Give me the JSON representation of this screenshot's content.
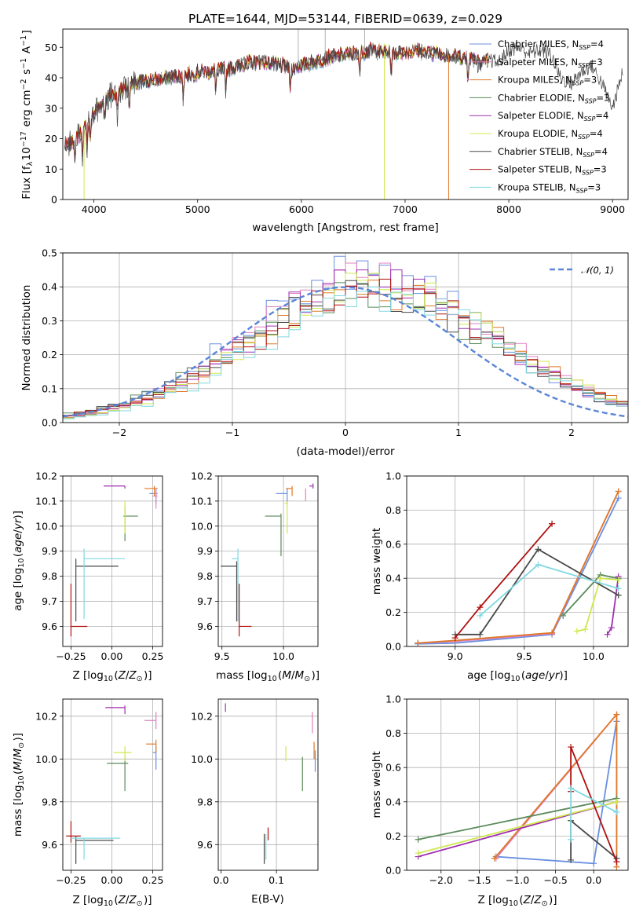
{
  "figure_title": "PLATE=1644, MJD=53144, FIBERID=0639, z=0.029",
  "series_colors": [
    "#6a8fe0",
    "#e080c0",
    "#e07828",
    "#5a8a5a",
    "#a030b0",
    "#d0e850",
    "#484848",
    "#b01010",
    "#80d8e0"
  ],
  "chart_data": [
    {
      "type": "line",
      "id": "spectrum",
      "xlabel": "wavelength [Angstrom, rest frame]",
      "ylabel": "Flux [f$_\\lambda$10$^{-17}$ erg cm$^{-2}$ s$^{-1}$ A$^{-1}$]",
      "ylabel_parts": {
        "a": "Flux [f",
        "b": "λ",
        "c": "10",
        "d": "−17",
        "e": " erg cm",
        "f": "−2",
        "g": " s",
        "h": "−1",
        "i": " A",
        "j": "−1",
        "k": "]"
      },
      "xlim": [
        3700,
        9150
      ],
      "ylim": [
        0,
        56
      ],
      "xticks": [
        4000,
        5000,
        6000,
        7000,
        8000,
        9000
      ],
      "yticks": [
        0,
        10,
        20,
        30,
        40,
        50
      ],
      "legend_position": "upper right",
      "legend": [
        {
          "base": "Chabrier MILES, N",
          "sub": "SSP",
          "tail": "=4"
        },
        {
          "base": "Salpeter MILES, N",
          "sub": "SSP",
          "tail": "=3"
        },
        {
          "base": "Kroupa MILES, N",
          "sub": "SSP",
          "tail": "=3"
        },
        {
          "base": "Chabrier ELODIE, N",
          "sub": "SSP",
          "tail": "=3"
        },
        {
          "base": "Salpeter ELODIE, N",
          "sub": "SSP",
          "tail": "=4"
        },
        {
          "base": "Kroupa ELODIE, N",
          "sub": "SSP",
          "tail": "=4"
        },
        {
          "base": "Chabrier STELIB, N",
          "sub": "SSP",
          "tail": "=4"
        },
        {
          "base": "Salpeter STELIB, N",
          "sub": "SSP",
          "tail": "=3"
        },
        {
          "base": "Kroupa STELIB, N",
          "sub": "SSP",
          "tail": "=3"
        }
      ],
      "model_trend": {
        "x": [
          3720,
          3800,
          3900,
          4000,
          4100,
          4300,
          4500,
          4700,
          4900,
          5100,
          5300,
          5500,
          5700,
          5900,
          6100,
          6300,
          6500,
          6700,
          6900,
          7100,
          7300,
          7500,
          7700,
          7900,
          8100,
          8300,
          8500,
          8700,
          8900,
          9100
        ],
        "y": [
          17,
          19,
          23,
          28,
          33,
          37,
          39,
          40,
          41,
          42,
          43,
          45,
          45,
          43,
          45,
          47,
          48,
          49,
          48,
          49,
          48,
          47,
          46,
          45,
          44,
          43,
          42,
          41,
          40,
          40
        ]
      },
      "observed_trend": {
        "x": [
          7700,
          7800,
          7900,
          8000,
          8100,
          8200,
          8300,
          8400,
          8500,
          8600,
          8700,
          8800,
          8900,
          9000,
          9100
        ],
        "y": [
          44,
          46,
          45,
          49,
          50,
          48,
          49,
          48,
          40,
          38,
          42,
          44,
          38,
          30,
          42
        ]
      },
      "absorption_dips_x": [
        3820,
        3889,
        3934,
        3968,
        4102,
        4227,
        4340,
        4861,
        5175,
        5270,
        5893,
        6563,
        6866,
        7605
      ]
    },
    {
      "type": "area",
      "id": "residual_histogram",
      "xlabel": "(data-model)/error",
      "ylabel": "Normed distribution",
      "xlim": [
        -2.5,
        2.5
      ],
      "ylim": [
        0,
        0.5
      ],
      "xticks": [
        -2,
        -1,
        0,
        1,
        2
      ],
      "yticks": [
        0.0,
        0.1,
        0.2,
        0.3,
        0.4,
        0.5
      ],
      "bins": 50,
      "legend_position": "upper right",
      "legend_label": "𝒩(0, 1)",
      "normal_mean": 0,
      "normal_sigma": 1,
      "series_peak_values": [
        0.49,
        0.47,
        0.42,
        0.43,
        0.45,
        0.44,
        0.43,
        0.43,
        0.4
      ]
    },
    {
      "type": "scatter",
      "id": "age_vs_Z",
      "xlabel": "Z [log$_{10}$($Z$/$Z_\\odot$)]",
      "ylabel": "age  [log$_{10}$($age$/$yr$)]",
      "xlim": [
        -0.3,
        0.31
      ],
      "ylim": [
        9.52,
        10.2
      ],
      "xticks": [
        -0.25,
        0.0,
        0.25
      ],
      "yticks": [
        9.6,
        9.7,
        9.8,
        9.9,
        10.0,
        10.1,
        10.2
      ],
      "points": [
        {
          "x": 0.27,
          "y": 10.13,
          "xerr": [
            0.04,
            0.01
          ],
          "yerr": [
            0.04,
            0.02
          ]
        },
        {
          "x": 0.27,
          "y": 10.12,
          "xerr": [
            0.02,
            0.01
          ],
          "yerr": [
            0.05,
            0.02
          ]
        },
        {
          "x": 0.26,
          "y": 10.15,
          "xerr": [
            0.06,
            0.02
          ],
          "yerr": [
            0.03,
            0.01
          ]
        },
        {
          "x": 0.08,
          "y": 10.04,
          "xerr": [
            0.01,
            0.08
          ],
          "yerr": [
            0.1,
            0.04
          ]
        },
        {
          "x": 0.08,
          "y": 10.16,
          "xerr": [
            0.13,
            0.0
          ],
          "yerr": [
            0.01,
            0.0
          ]
        },
        {
          "x": 0.08,
          "y": 10.09,
          "xerr": [
            0.0,
            0.0
          ],
          "yerr": [
            0.12,
            0.01
          ]
        },
        {
          "x": -0.22,
          "y": 9.84,
          "xerr": [
            0.0,
            0.26
          ],
          "yerr": [
            0.22,
            0.03
          ]
        },
        {
          "x": -0.25,
          "y": 9.6,
          "xerr": [
            0.0,
            0.1
          ],
          "yerr": [
            0.04,
            0.17
          ]
        },
        {
          "x": -0.17,
          "y": 9.87,
          "xerr": [
            0.0,
            0.25
          ],
          "yerr": [
            0.24,
            0.04
          ]
        }
      ]
    },
    {
      "type": "scatter",
      "id": "age_vs_mass",
      "xlabel": "mass [log$_{10}$($M$/$M_\\odot$)]",
      "ylabel": "",
      "xlim": [
        9.47,
        10.28
      ],
      "ylim": [
        9.52,
        10.2
      ],
      "xticks": [
        9.5,
        10.0
      ],
      "yticks": [
        9.6,
        9.7,
        9.8,
        9.9,
        10.0,
        10.1,
        10.2
      ],
      "points": [
        {
          "x": 10.03,
          "y": 10.13,
          "xerr": [
            0.09,
            0.0
          ],
          "yerr": [
            0.04,
            0.02
          ]
        },
        {
          "x": 10.18,
          "y": 10.14,
          "xerr": [
            0.0,
            0.0
          ],
          "yerr": [
            0.04,
            0.01
          ]
        },
        {
          "x": 10.07,
          "y": 10.15,
          "xerr": [
            0.05,
            0.0
          ],
          "yerr": [
            0.03,
            0.01
          ]
        },
        {
          "x": 9.98,
          "y": 10.04,
          "xerr": [
            0.13,
            0.0
          ],
          "yerr": [
            0.16,
            0.01
          ]
        },
        {
          "x": 10.24,
          "y": 10.16,
          "xerr": [
            0.03,
            0.0
          ],
          "yerr": [
            0.01,
            0.01
          ]
        },
        {
          "x": 10.03,
          "y": 10.09,
          "xerr": [
            0.02,
            0.0
          ],
          "yerr": [
            0.12,
            0.01
          ]
        },
        {
          "x": 9.62,
          "y": 9.84,
          "xerr": [
            0.13,
            0.0
          ],
          "yerr": [
            0.22,
            0.02
          ]
        },
        {
          "x": 9.64,
          "y": 9.6,
          "xerr": [
            0.0,
            0.1
          ],
          "yerr": [
            0.04,
            0.17
          ]
        },
        {
          "x": 9.63,
          "y": 9.87,
          "xerr": [
            0.05,
            0.0
          ],
          "yerr": [
            0.25,
            0.04
          ]
        }
      ]
    },
    {
      "type": "line",
      "id": "massweight_vs_age",
      "xlabel": "age  [log$_{10}$($age$/$yr$)]",
      "ylabel": "mass weight",
      "xlim": [
        8.65,
        10.25
      ],
      "ylim": [
        0,
        1
      ],
      "xticks": [
        9.0,
        9.5,
        10.0
      ],
      "yticks": [
        0.0,
        0.2,
        0.4,
        0.6,
        0.8,
        1.0
      ],
      "series": [
        {
          "x": [
            8.73,
            9.0,
            9.7,
            10.18
          ],
          "y": [
            0.015,
            0.02,
            0.07,
            0.87
          ]
        },
        {
          "x": [
            8.73,
            9.0,
            9.7,
            10.18
          ],
          "y": [
            0.02,
            0.03,
            0.075,
            0.91
          ]
        },
        {
          "x": [
            8.73,
            9.0,
            9.7,
            10.18
          ],
          "y": [
            0.02,
            0.035,
            0.08,
            0.91
          ]
        },
        {
          "x": [
            9.78,
            10.05,
            10.18
          ],
          "y": [
            0.18,
            0.42,
            0.4
          ]
        },
        {
          "x": [
            10.1,
            10.13,
            10.18
          ],
          "y": [
            0.07,
            0.11,
            0.41
          ]
        },
        {
          "x": [
            9.88,
            9.94,
            10.05,
            10.18
          ],
          "y": [
            0.09,
            0.1,
            0.4,
            0.39
          ]
        },
        {
          "x": [
            9.0,
            9.18,
            9.6,
            10.18
          ],
          "y": [
            0.07,
            0.07,
            0.57,
            0.3
          ]
        },
        {
          "x": [
            9.0,
            9.18,
            9.7
          ],
          "y": [
            0.05,
            0.23,
            0.72
          ]
        },
        {
          "x": [
            9.18,
            9.6,
            10.18
          ],
          "y": [
            0.18,
            0.48,
            0.34
          ]
        }
      ]
    },
    {
      "type": "scatter",
      "id": "mass_vs_Z",
      "xlabel": "Z [log$_{10}$($Z$/$Z_\\odot$)]",
      "ylabel": "mass [log$_{10}$($M$/$M_\\odot$)]",
      "xlim": [
        -0.3,
        0.31
      ],
      "ylim": [
        9.48,
        10.28
      ],
      "xticks": [
        -0.25,
        0.0,
        0.25
      ],
      "yticks": [
        9.6,
        9.8,
        10.0,
        10.2
      ],
      "points": [
        {
          "x": 0.27,
          "y": 10.03,
          "xerr": [
            0.02,
            0.0
          ],
          "yerr": [
            0.08,
            0.03
          ]
        },
        {
          "x": 0.27,
          "y": 10.18,
          "xerr": [
            0.07,
            0.0
          ],
          "yerr": [
            0.04,
            0.04
          ]
        },
        {
          "x": 0.27,
          "y": 10.07,
          "xerr": [
            0.06,
            0.0
          ],
          "yerr": [
            0.04,
            0.02
          ]
        },
        {
          "x": 0.08,
          "y": 9.98,
          "xerr": [
            0.11,
            0.02
          ],
          "yerr": [
            0.13,
            0.03
          ]
        },
        {
          "x": 0.08,
          "y": 10.24,
          "xerr": [
            0.12,
            0.0
          ],
          "yerr": [
            0.03,
            0.01
          ]
        },
        {
          "x": 0.08,
          "y": 10.03,
          "xerr": [
            0.07,
            0.04
          ],
          "yerr": [
            0.04,
            0.03
          ]
        },
        {
          "x": -0.22,
          "y": 9.62,
          "xerr": [
            0.0,
            0.23
          ],
          "yerr": [
            0.11,
            0.02
          ]
        },
        {
          "x": -0.25,
          "y": 9.64,
          "xerr": [
            0.03,
            0.06
          ],
          "yerr": [
            0.03,
            0.07
          ]
        },
        {
          "x": -0.17,
          "y": 9.63,
          "xerr": [
            0.08,
            0.22
          ],
          "yerr": [
            0.1,
            0.0
          ]
        }
      ]
    },
    {
      "type": "scatter",
      "id": "mass_vs_EBV",
      "xlabel": "E(B-V)",
      "ylabel": "",
      "xlim": [
        -0.005,
        0.175
      ],
      "ylim": [
        9.48,
        10.28
      ],
      "xticks": [
        0.0,
        0.1
      ],
      "yticks": [
        9.6,
        9.8,
        10.0,
        10.2
      ],
      "points": [
        {
          "x": 0.17,
          "y": 10.0,
          "xerr": [
            0,
            0
          ],
          "yerr": [
            0.06,
            0.04
          ]
        },
        {
          "x": 0.165,
          "y": 10.17,
          "xerr": [
            0,
            0
          ],
          "yerr": [
            0.05,
            0.05
          ]
        },
        {
          "x": 0.168,
          "y": 10.05,
          "xerr": [
            0,
            0
          ],
          "yerr": [
            0.05,
            0.03
          ]
        },
        {
          "x": 0.147,
          "y": 9.93,
          "xerr": [
            0,
            0
          ],
          "yerr": [
            0.08,
            0.08
          ]
        },
        {
          "x": 0.008,
          "y": 10.24,
          "xerr": [
            0,
            0
          ],
          "yerr": [
            0.02,
            0.02
          ]
        },
        {
          "x": 0.117,
          "y": 10.02,
          "xerr": [
            0,
            0
          ],
          "yerr": [
            0.03,
            0.04
          ]
        },
        {
          "x": 0.078,
          "y": 9.58,
          "xerr": [
            0,
            0
          ],
          "yerr": [
            0.07,
            0.07
          ]
        },
        {
          "x": 0.085,
          "y": 9.65,
          "xerr": [
            0,
            0
          ],
          "yerr": [
            0.03,
            0.03
          ]
        },
        {
          "x": 0.081,
          "y": 9.6,
          "xerr": [
            0,
            0
          ],
          "yerr": [
            0.07,
            0.05
          ]
        }
      ]
    },
    {
      "type": "line",
      "id": "massweight_vs_Z",
      "xlabel": "Z [log$_{10}$($Z$/$Z_\\odot$)]",
      "ylabel": "mass weight",
      "xlim": [
        -2.45,
        0.45
      ],
      "ylim": [
        0,
        1
      ],
      "xticks": [
        -2.0,
        -1.5,
        -1.0,
        -0.5,
        0.0
      ],
      "yticks": [
        0.0,
        0.2,
        0.4,
        0.6,
        0.8,
        1.0
      ],
      "series": [
        {
          "x": [
            -1.28,
            0.0,
            0.3
          ],
          "y": [
            0.08,
            0.04,
            0.87
          ]
        },
        {
          "x": [
            -1.28,
            0.3,
            0.3
          ],
          "y": [
            0.07,
            0.91,
            0.02
          ]
        },
        {
          "x": [
            -1.3,
            0.3,
            0.3
          ],
          "y": [
            0.07,
            0.91,
            0.02
          ]
        },
        {
          "x": [
            -2.3,
            0.3
          ],
          "y": [
            0.18,
            0.42
          ]
        },
        {
          "x": [
            -2.3,
            0.3
          ],
          "y": [
            0.08,
            0.4
          ]
        },
        {
          "x": [
            -2.3,
            0.3
          ],
          "y": [
            0.1,
            0.4
          ]
        },
        {
          "x": [
            -0.3,
            -0.3,
            0.3
          ],
          "y": [
            0.06,
            0.29,
            0.07
          ]
        },
        {
          "x": [
            -0.3,
            -0.3,
            0.3
          ],
          "y": [
            0.46,
            0.72,
            0.05
          ]
        },
        {
          "x": [
            -0.3,
            -0.3,
            0.3
          ],
          "y": [
            0.18,
            0.48,
            0.34
          ]
        }
      ]
    }
  ]
}
